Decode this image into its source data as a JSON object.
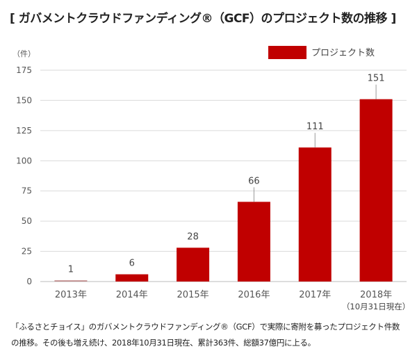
{
  "title": "[ ガバメントクラウドファンディング®（GCF）のプロジェクト数の推移 ]",
  "chart_data": {
    "type": "bar",
    "title": "ガバメントクラウドファンディング®（GCF）のプロジェクト数の推移",
    "categories": [
      "2013年",
      "2014年",
      "2015年",
      "2016年",
      "2017年",
      "2018年"
    ],
    "category_sublabels": [
      "",
      "",
      "",
      "",
      "",
      "（10月31日現在）"
    ],
    "series": [
      {
        "name": "プロジェクト数",
        "values": [
          1,
          6,
          28,
          66,
          111,
          151
        ],
        "color": "#C00000"
      }
    ],
    "ylabel": "（件）",
    "ylim": [
      0,
      175
    ],
    "yticks": [
      0,
      25,
      50,
      75,
      100,
      125,
      150,
      175
    ],
    "grid": true,
    "legend": "top-right"
  },
  "caption": {
    "line1": "「ふるさとチョイス」のガバメントクラウドファンディング®（GCF）で実際に寄附を募ったプロジェクト件数",
    "line2": "の推移。その後も増え続け、2018年10月31日現在、累計363件、総額37億円に上る。"
  }
}
